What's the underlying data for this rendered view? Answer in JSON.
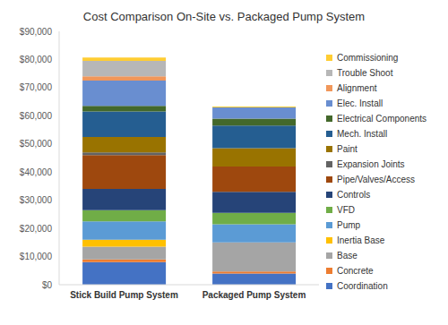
{
  "chart_data": {
    "type": "bar",
    "title": "Cost Comparison On-Site vs. Packaged Pump System",
    "categories": [
      "Stick Build Pump System",
      "Packaged Pump System"
    ],
    "stacked": true,
    "grid": false,
    "legend": "right",
    "ylim": [
      0,
      90000
    ],
    "yticks": [
      {
        "value": 0,
        "label": "$0"
      },
      {
        "value": 10000,
        "label": "$10,000"
      },
      {
        "value": 20000,
        "label": "$20,000"
      },
      {
        "value": 30000,
        "label": "$30,000"
      },
      {
        "value": 40000,
        "label": "$40,000"
      },
      {
        "value": 50000,
        "label": "$50,000"
      },
      {
        "value": 60000,
        "label": "$60,000"
      },
      {
        "value": 70000,
        "label": "$70,000"
      },
      {
        "value": 80000,
        "label": "$80,000"
      },
      {
        "value": 90000,
        "label": "$90,000"
      }
    ],
    "series": [
      {
        "name": "Coordination",
        "color": "#4472c4",
        "values": [
          8000,
          4000
        ]
      },
      {
        "name": "Concrete",
        "color": "#ed7d31",
        "values": [
          1000,
          700
        ]
      },
      {
        "name": "Base",
        "color": "#a5a5a5",
        "values": [
          4500,
          10300
        ]
      },
      {
        "name": "Inertia Base",
        "color": "#ffc000",
        "values": [
          2500,
          0
        ]
      },
      {
        "name": "Pump",
        "color": "#5b9bd5",
        "values": [
          6500,
          6500
        ]
      },
      {
        "name": "VFD",
        "color": "#70ad47",
        "values": [
          4000,
          4000
        ]
      },
      {
        "name": "Controls",
        "color": "#264478",
        "values": [
          7500,
          7500
        ]
      },
      {
        "name": "Pipe/Valves/Access",
        "color": "#9e480e",
        "values": [
          12000,
          9000
        ]
      },
      {
        "name": "Expansion  Joints",
        "color": "#636363",
        "values": [
          1000,
          0
        ]
      },
      {
        "name": "Paint",
        "color": "#997300",
        "values": [
          5500,
          6500
        ]
      },
      {
        "name": "Mech. Install",
        "color": "#255e91",
        "values": [
          9000,
          8000
        ]
      },
      {
        "name": "Electrical Components",
        "color": "#43682b",
        "values": [
          2000,
          2500
        ]
      },
      {
        "name": "Elec. Install",
        "color": "#698ed0",
        "values": [
          9000,
          4000
        ]
      },
      {
        "name": "Alignment",
        "color": "#f1975a",
        "values": [
          1500,
          0
        ]
      },
      {
        "name": "Trouble Shoot",
        "color": "#b7b7b7",
        "values": [
          5500,
          0
        ]
      },
      {
        "name": "Commissioning",
        "color": "#ffcd33",
        "values": [
          1200,
          300
        ]
      }
    ]
  }
}
